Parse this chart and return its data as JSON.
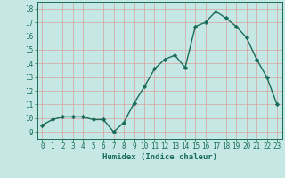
{
  "x": [
    0,
    1,
    2,
    3,
    4,
    5,
    6,
    7,
    8,
    9,
    10,
    11,
    12,
    13,
    14,
    15,
    16,
    17,
    18,
    19,
    20,
    21,
    22,
    23
  ],
  "y": [
    9.5,
    9.9,
    10.1,
    10.1,
    10.1,
    9.9,
    9.9,
    9.0,
    9.7,
    11.1,
    12.3,
    13.6,
    14.3,
    14.6,
    13.7,
    16.7,
    17.0,
    17.8,
    17.3,
    16.7,
    15.9,
    14.3,
    13.0,
    11.0
  ],
  "line_color": "#1a6b5a",
  "marker": "D",
  "markersize": 2.2,
  "linewidth": 1.0,
  "xlabel": "Humidex (Indice chaleur)",
  "xlim": [
    -0.5,
    23.5
  ],
  "ylim": [
    8.5,
    18.5
  ],
  "yticks": [
    9,
    10,
    11,
    12,
    13,
    14,
    15,
    16,
    17,
    18
  ],
  "xticks": [
    0,
    1,
    2,
    3,
    4,
    5,
    6,
    7,
    8,
    9,
    10,
    11,
    12,
    13,
    14,
    15,
    16,
    17,
    18,
    19,
    20,
    21,
    22,
    23
  ],
  "bg_color": "#c5e8e5",
  "grid_color": "#daa0a0",
  "tick_color": "#1a6b5a",
  "label_color": "#1a6b5a",
  "xlabel_fontsize": 6.5,
  "tick_fontsize": 5.5
}
